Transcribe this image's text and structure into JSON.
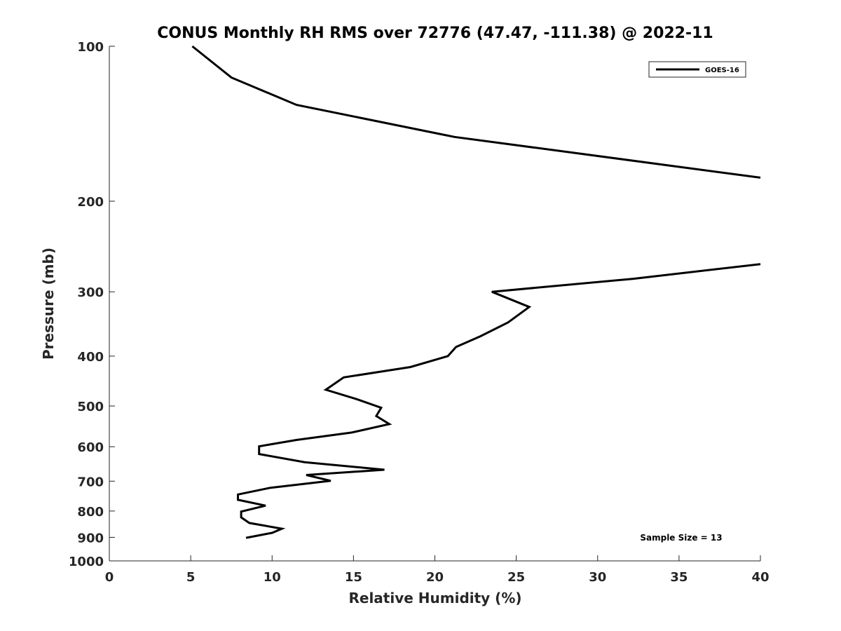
{
  "chart_data": {
    "type": "line",
    "title": "CONUS Monthly RH RMS over 72776 (47.47, -111.38) @ 2022-11",
    "xlabel": "Relative Humidity (%)",
    "ylabel": "Pressure (mb)",
    "xlim": [
      0,
      40
    ],
    "ylim": [
      100,
      1000
    ],
    "y_scale": "log",
    "y_reversed": true,
    "grid": false,
    "legend_position": "top-right",
    "x_ticks": [
      0,
      5,
      10,
      15,
      20,
      25,
      30,
      35,
      40
    ],
    "y_ticks": [
      100,
      200,
      300,
      400,
      500,
      600,
      700,
      800,
      900,
      1000
    ],
    "annotation": "Sample Size = 13",
    "series": [
      {
        "name": "GOES-16",
        "color": "#000000",
        "segments": [
          [
            {
              "x": 5.1,
              "y": 100
            },
            {
              "x": 7.5,
              "y": 115
            },
            {
              "x": 11.5,
              "y": 130
            },
            {
              "x": 21.2,
              "y": 150
            },
            {
              "x": 40.0,
              "y": 180
            }
          ],
          [
            {
              "x": 40.0,
              "y": 265
            },
            {
              "x": 32.2,
              "y": 283
            },
            {
              "x": 23.5,
              "y": 300
            },
            {
              "x": 25.8,
              "y": 321
            },
            {
              "x": 24.5,
              "y": 344
            },
            {
              "x": 22.8,
              "y": 366
            },
            {
              "x": 21.3,
              "y": 384
            },
            {
              "x": 20.8,
              "y": 400
            },
            {
              "x": 18.5,
              "y": 420
            },
            {
              "x": 14.4,
              "y": 440
            },
            {
              "x": 13.3,
              "y": 465
            },
            {
              "x": 15.2,
              "y": 485
            },
            {
              "x": 16.7,
              "y": 504
            },
            {
              "x": 16.4,
              "y": 523
            },
            {
              "x": 17.2,
              "y": 542
            },
            {
              "x": 14.9,
              "y": 563
            },
            {
              "x": 11.5,
              "y": 582
            },
            {
              "x": 9.2,
              "y": 599
            },
            {
              "x": 9.2,
              "y": 620
            },
            {
              "x": 12.0,
              "y": 643
            },
            {
              "x": 16.9,
              "y": 665
            },
            {
              "x": 12.1,
              "y": 681
            },
            {
              "x": 13.6,
              "y": 699
            },
            {
              "x": 9.9,
              "y": 721
            },
            {
              "x": 7.9,
              "y": 743
            },
            {
              "x": 7.9,
              "y": 761
            },
            {
              "x": 9.6,
              "y": 781
            },
            {
              "x": 8.1,
              "y": 802
            },
            {
              "x": 8.1,
              "y": 823
            },
            {
              "x": 8.6,
              "y": 844
            },
            {
              "x": 10.6,
              "y": 866
            },
            {
              "x": 10.0,
              "y": 882
            },
            {
              "x": 8.4,
              "y": 902
            }
          ]
        ]
      }
    ]
  }
}
